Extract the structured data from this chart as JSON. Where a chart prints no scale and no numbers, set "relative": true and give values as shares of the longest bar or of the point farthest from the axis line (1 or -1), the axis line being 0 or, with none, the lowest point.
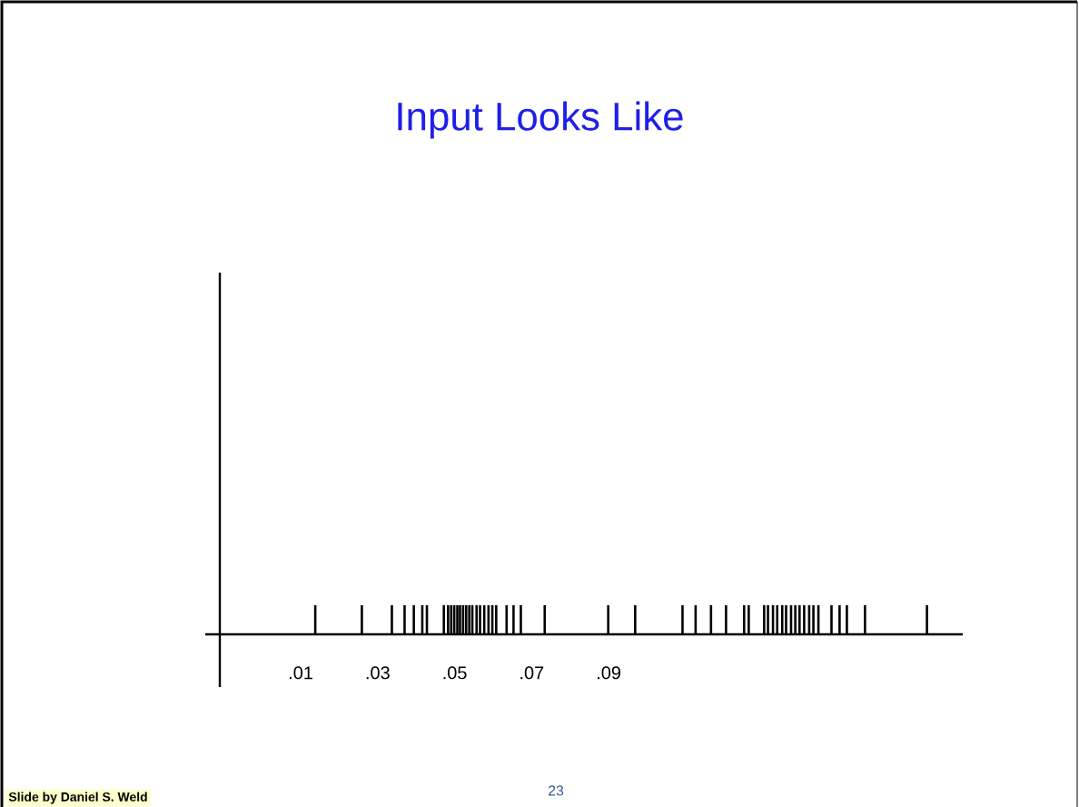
{
  "chart_data": {
    "type": "bar",
    "title": "Input Looks Like",
    "relative": true,
    "x": [
      0.0138,
      0.0259,
      0.0337,
      0.037,
      0.0394,
      0.0416,
      0.0428,
      0.0472,
      0.0483,
      0.0491,
      0.0499,
      0.0507,
      0.0514,
      0.0522,
      0.053,
      0.0538,
      0.0546,
      0.0557,
      0.0566,
      0.0577,
      0.0588,
      0.0598,
      0.0608,
      0.0635,
      0.0653,
      0.0672,
      0.0734,
      0.0899,
      0.0969,
      0.1092,
      0.1126,
      0.1166,
      0.1205,
      0.1252,
      0.1264,
      0.1304,
      0.1314,
      0.1327,
      0.1338,
      0.1351,
      0.1361,
      0.1374,
      0.1385,
      0.1396,
      0.1408,
      0.1421,
      0.1432,
      0.1445,
      0.1479,
      0.15,
      0.1519,
      0.1566,
      0.1727
    ],
    "values": [
      1,
      1,
      1,
      1,
      1,
      1,
      1,
      1,
      1,
      1,
      1,
      1,
      1,
      1,
      1,
      1,
      1,
      1,
      1,
      1,
      1,
      1,
      1,
      1,
      1,
      1,
      1,
      1,
      1,
      1,
      1,
      1,
      1,
      1,
      1,
      1,
      1,
      1,
      1,
      1,
      1,
      1,
      1,
      1,
      1,
      1,
      1,
      1,
      1,
      1,
      1,
      1,
      1
    ],
    "color": "#000000",
    "xlim": [
      -0.011,
      0.182
    ],
    "xticks": [
      {
        "value": 0.01,
        "label": ".01"
      },
      {
        "value": 0.03,
        "label": ".03"
      },
      {
        "value": 0.05,
        "label": ".05"
      },
      {
        "value": 0.07,
        "label": ".07"
      },
      {
        "value": 0.09,
        "label": ".09"
      }
    ],
    "tick_labels": "x",
    "annotations": [
      "Slide by Daniel S. Weld",
      "23"
    ]
  }
}
